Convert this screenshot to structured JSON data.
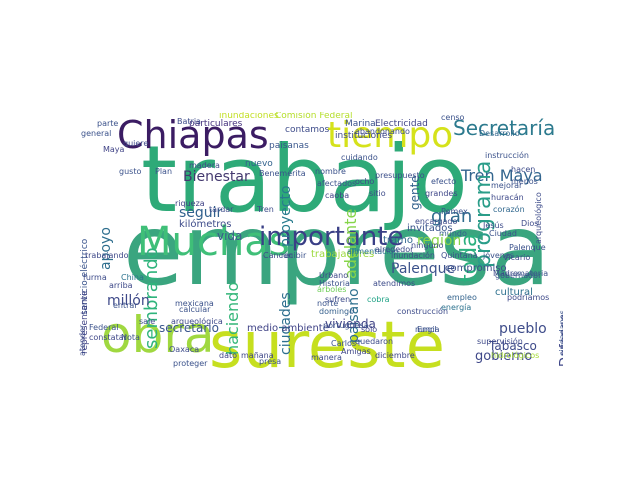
{
  "word_cloud": {
    "words": [
      {
        "text": "trabajo",
        "color": "#2eaa78"
      },
      {
        "text": "empresa",
        "color": "#3aa57f"
      },
      {
        "text": "obra",
        "color": "#a0d840"
      },
      {
        "text": "sureste",
        "color": "#c6df1f"
      },
      {
        "text": "Chiapas",
        "color": "#3b1c63"
      },
      {
        "text": "tiempo",
        "color": "#d5e21b"
      },
      {
        "text": "Muchas",
        "color": "#3fbf78"
      },
      {
        "text": "importante",
        "color": "#3a3f86"
      },
      {
        "text": "Secretaría",
        "color": "#2c7a8e"
      },
      {
        "text": "Tren Maya",
        "color": "#32658e"
      },
      {
        "text": "programa",
        "color": "#2a9d89"
      },
      {
        "text": "toda",
        "color": "#2ab07e"
      },
      {
        "text": "gran",
        "color": "#2f6c8e"
      },
      {
        "text": "región",
        "color": "#89d548"
      },
      {
        "text": "Bienestar",
        "color": "#44396f"
      },
      {
        "text": "seguir",
        "color": "#30608d"
      },
      {
        "text": "proyecto",
        "color": "#287c8e"
      },
      {
        "text": "adelante",
        "color": "#86d549"
      },
      {
        "text": "sembrando",
        "color": "#2fb47c"
      },
      {
        "text": "haciendo",
        "color": "#34b679"
      },
      {
        "text": "apoyo",
        "color": "#2e6e8e"
      },
      {
        "text": "millón",
        "color": "#3e4989"
      },
      {
        "text": "ciudades",
        "color": "#2e6f8e"
      },
      {
        "text": "paisano",
        "color": "#2d708e"
      },
      {
        "text": "Palenque",
        "color": "#3b528b"
      },
      {
        "text": "Defensa",
        "color": "#3f4788"
      },
      {
        "text": "pueblo",
        "color": "#3e4c8a"
      },
      {
        "text": "Tabasco",
        "color": "#3e4a89"
      },
      {
        "text": "gobierno",
        "color": "#3f4889"
      },
      {
        "text": "secretario",
        "color": "#39558c"
      },
      {
        "text": "vivienda",
        "color": "#414487"
      },
      {
        "text": "vida",
        "color": "#3b5a8c"
      },
      {
        "text": "kilómetros",
        "color": "#3e4c8a"
      },
      {
        "text": "gente",
        "color": "#33628d"
      },
      {
        "text": "compromiso",
        "color": "#3d4e8a"
      },
      {
        "text": "cultural",
        "color": "#2d708e"
      },
      {
        "text": "trabajadores",
        "color": "#9bd93c"
      },
      {
        "text": "invitados",
        "color": "#3a548c"
      },
      {
        "text": "tramo",
        "color": "#31668e"
      },
      {
        "text": "medio ambiente",
        "color": "#414487"
      },
      {
        "text": "Electricidad",
        "color": "#414487"
      },
      {
        "text": "Marina",
        "color": "#3b528b"
      },
      {
        "text": "instituciones",
        "color": "#3e4989"
      },
      {
        "text": "inundaciones",
        "color": "#c2df23"
      },
      {
        "text": "Comisión Federal",
        "color": "#b5de2b"
      },
      {
        "text": "particulares",
        "color": "#46327e"
      },
      {
        "text": "contamos",
        "color": "#3e4c8a"
      },
      {
        "text": "nuevo",
        "color": "#33638d"
      },
      {
        "text": "paisanas",
        "color": "#39568c"
      },
      {
        "text": "Desarrollo",
        "color": "#31678e"
      },
      {
        "text": "instrucción",
        "color": "#3b528b"
      },
      {
        "text": "servicio eléctrico",
        "color": "#3a548c"
      },
      {
        "text": "representante",
        "color": "#414487"
      },
      {
        "text": "construcción",
        "color": "#3e4c8a"
      },
      {
        "text": "energía",
        "color": "#2c728e"
      },
      {
        "text": "empleo",
        "color": "#33638d"
      },
      {
        "text": "presupuesto",
        "color": "#3c4f8a"
      },
      {
        "text": "mejorar",
        "color": "#3b528b"
      },
      {
        "text": "huracán",
        "color": "#3e4989"
      },
      {
        "text": "corazón",
        "color": "#31688e"
      },
      {
        "text": "podríamos",
        "color": "#3e4989"
      },
      {
        "text": "gobernador",
        "color": "#3b518b"
      },
      {
        "text": "cobra",
        "color": "#20a386"
      },
      {
        "text": "mañana",
        "color": "#3f4788"
      },
      {
        "text": "presa",
        "color": "#3b528b"
      },
      {
        "text": "diciembre",
        "color": "#3f4788"
      },
      {
        "text": "domingo",
        "color": "#355f8d"
      },
      {
        "text": "norte",
        "color": "#3a548c"
      },
      {
        "text": "Historia",
        "color": "#3b528b"
      },
      {
        "text": "Urbano",
        "color": "#3e4989"
      },
      {
        "text": "Federal",
        "color": "#3b528b"
      },
      {
        "text": "constatar",
        "color": "#3f4788"
      },
      {
        "text": "Cancún",
        "color": "#3e4989"
      },
      {
        "text": "inundación",
        "color": "#3e4c8a"
      },
      {
        "text": "alimentación",
        "color": "#2c728e"
      },
      {
        "text": "Quintana",
        "color": "#3e4c8a"
      },
      {
        "text": "Maya",
        "color": "#414487"
      },
      {
        "text": "general",
        "color": "#3b528b"
      },
      {
        "text": "árboles",
        "color": "#6ece58"
      },
      {
        "text": "madera",
        "color": "#3e4989"
      },
      {
        "text": "gusto",
        "color": "#3b528b"
      },
      {
        "text": "ocho",
        "color": "#3e4c8a"
      },
      {
        "text": "efecto",
        "color": "#3b528b"
      },
      {
        "text": "grandes",
        "color": "#3f4788"
      },
      {
        "text": "mundo",
        "color": "#355f8d"
      },
      {
        "text": "quiere",
        "color": "#3e4989"
      },
      {
        "text": "nombre",
        "color": "#3b528b"
      },
      {
        "text": "afectados",
        "color": "#3b528b"
      },
      {
        "text": "caoba",
        "color": "#414487"
      },
      {
        "text": "sitio",
        "color": "#3e4c8a"
      },
      {
        "text": "riqueza",
        "color": "#414487"
      },
      {
        "text": "Carlos",
        "color": "#3b528b"
      },
      {
        "text": "Amigas",
        "color": "#3f4788"
      },
      {
        "text": "manera",
        "color": "#3e4989"
      },
      {
        "text": "nunca",
        "color": "#3b528b"
      },
      {
        "text": "sólo",
        "color": "#414487"
      },
      {
        "text": "hacen",
        "color": "#3e4c8a"
      },
      {
        "text": "menos",
        "color": "#3b528b"
      },
      {
        "text": "Vicario",
        "color": "#3e4989"
      },
      {
        "text": "materia",
        "color": "#3b528b"
      },
      {
        "text": "China",
        "color": "#2c728e"
      },
      {
        "text": "Madre",
        "color": "#3e4c8a"
      },
      {
        "text": "parte",
        "color": "#3b528b"
      },
      {
        "text": "Batria",
        "color": "#3e4c8a"
      },
      {
        "text": "censo",
        "color": "#3b528b"
      },
      {
        "text": "arqueológica",
        "color": "#3e4989"
      },
      {
        "text": "arqueológico",
        "color": "#3e4c8a"
      },
      {
        "text": "ciudadanos",
        "color": "#3b528b"
      },
      {
        "text": "dato",
        "color": "#414487"
      },
      {
        "text": "tardar",
        "color": "#3e4c8a"
      },
      {
        "text": "calcular",
        "color": "#3b528b"
      },
      {
        "text": "encargado",
        "color": "#3e4989"
      },
      {
        "text": "Engil",
        "color": "#3b528b"
      },
      {
        "text": "furma",
        "color": "#3e4c8a"
      },
      {
        "text": "arriba",
        "color": "#3e4989"
      },
      {
        "text": "entrar",
        "color": "#3b528b"
      },
      {
        "text": "sufren",
        "color": "#3e4c8a"
      },
      {
        "text": "portuguesa",
        "color": "#3b528b"
      },
      {
        "text": "abandonando",
        "color": "#3e4c8a"
      },
      {
        "text": "Benemérita",
        "color": "#3b528b"
      },
      {
        "text": "Tren",
        "color": "#3e4c8a"
      },
      {
        "text": "Plan",
        "color": "#3b528b"
      },
      {
        "text": "sale",
        "color": "#3e4c8a"
      },
      {
        "text": "Nota",
        "color": "#3b528b"
      },
      {
        "text": "Oaxaca",
        "color": "#3e4c8a"
      },
      {
        "text": "cuidando",
        "color": "#3b528b"
      },
      {
        "text": "supervisión",
        "color": "#3e4989"
      },
      {
        "text": "proteger",
        "color": "#3b528b"
      },
      {
        "text": "hidrológicos",
        "color": "#a5db36"
      },
      {
        "text": "atender",
        "color": "#3e4c8a"
      },
      {
        "text": "recibir",
        "color": "#3b528b"
      },
      {
        "text": "alrededor",
        "color": "#3e4989"
      },
      {
        "text": "trabajando",
        "color": "#3e4989"
      },
      {
        "text": "Palenque",
        "color": "#3b528b"
      },
      {
        "text": "ninguno",
        "color": "#3e4c8a"
      },
      {
        "text": "jóvenes",
        "color": "#3b528b"
      },
      {
        "text": "atendimos",
        "color": "#3e4c8a"
      },
      {
        "text": "Pemex",
        "color": "#3b528b"
      },
      {
        "text": "quedaron",
        "color": "#3e4c8a"
      },
      {
        "text": "mexicana",
        "color": "#3b528b"
      },
      {
        "text": "Dios",
        "color": "#3e4c8a"
      },
      {
        "text": "Ciudad",
        "color": "#3b528b"
      },
      {
        "text": "Jesús",
        "color": "#3e4c8a"
      },
      {
        "text": "dicho",
        "color": "#3b528b"
      },
      {
        "text": "falta",
        "color": "#3e4c8a"
      },
      {
        "text": "Camino",
        "color": "#3b528b"
      }
    ]
  }
}
